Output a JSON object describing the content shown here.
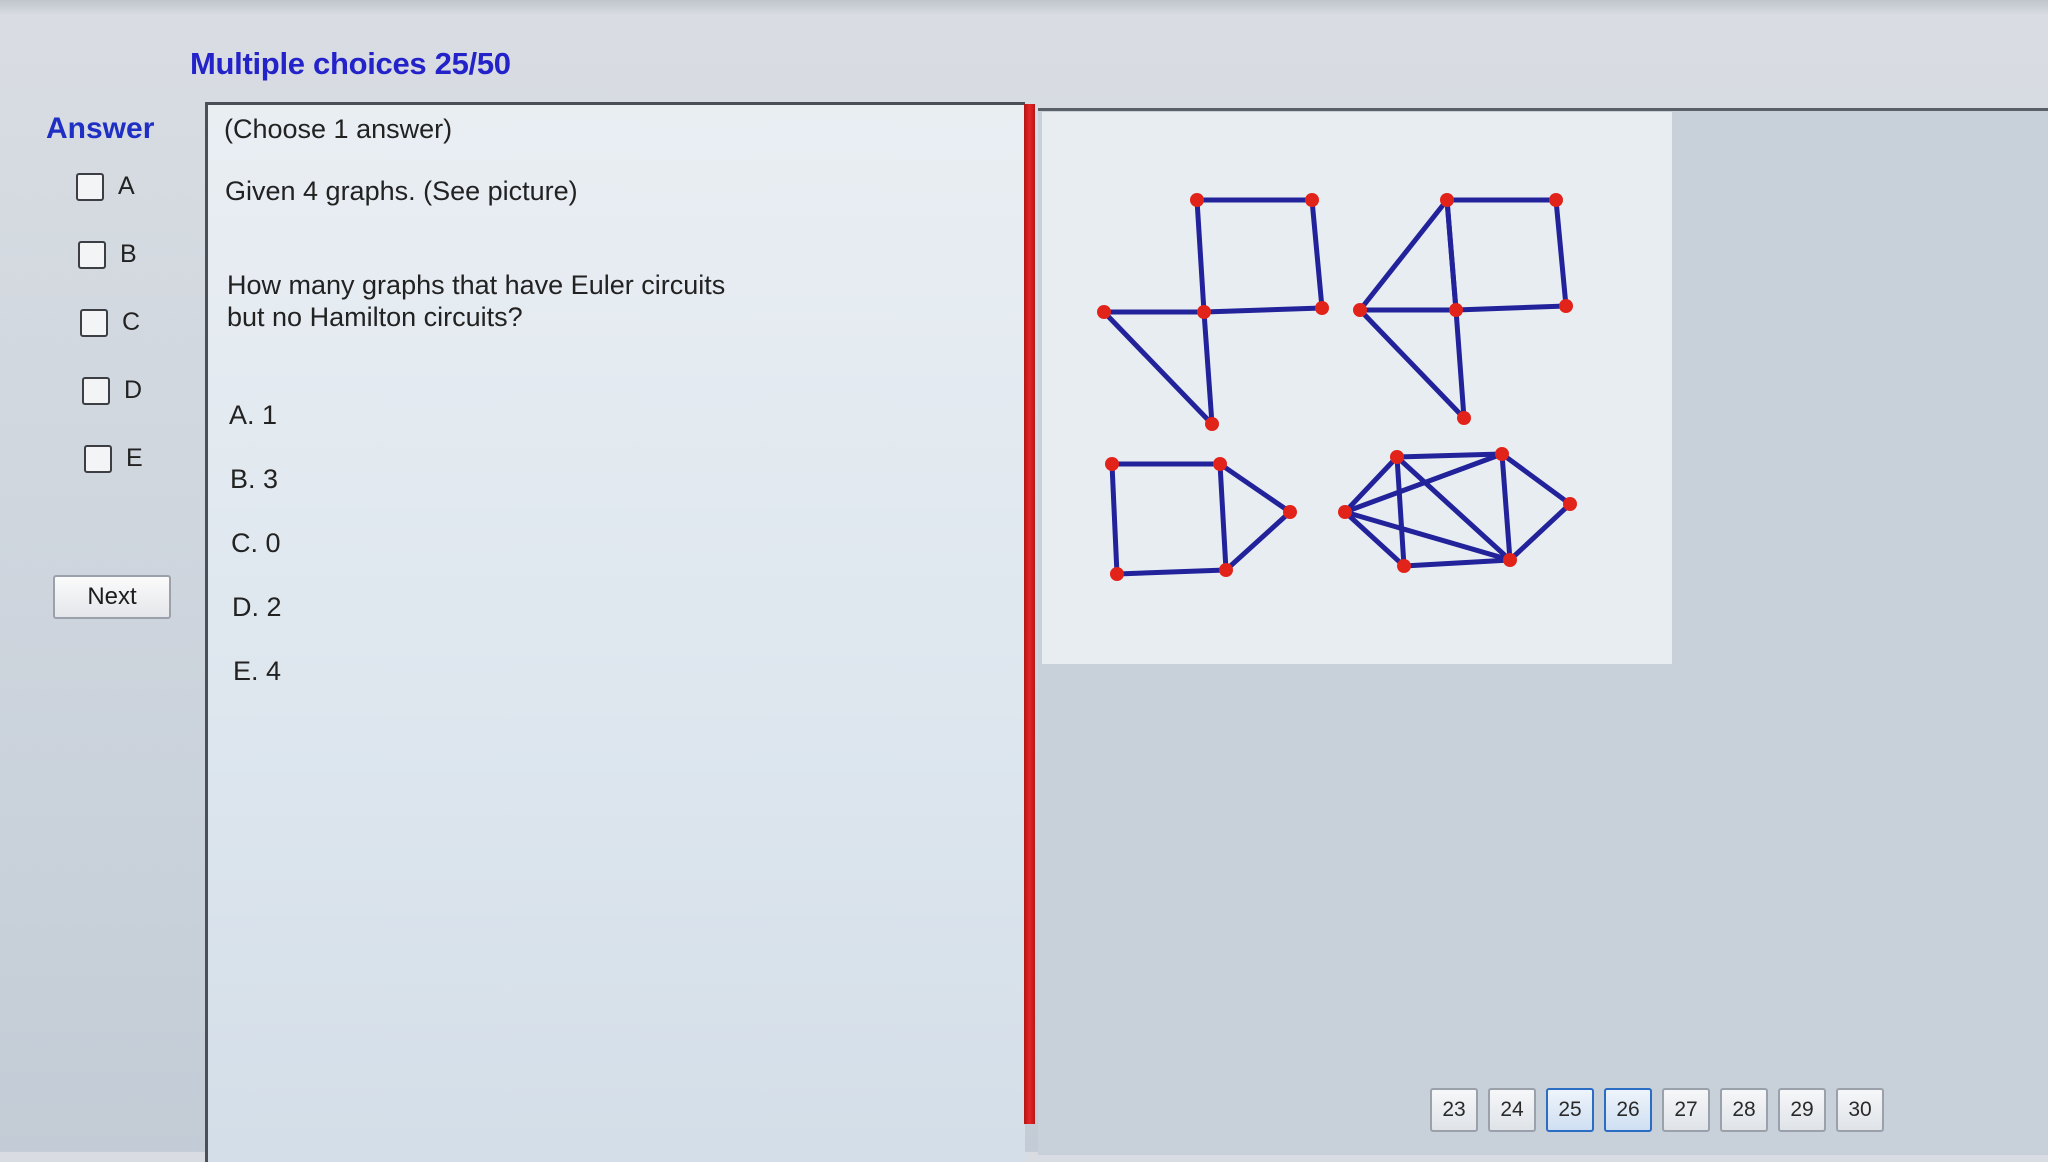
{
  "header": {
    "title": "Multiple choices 25/50"
  },
  "answer": {
    "label": "Answer",
    "options": [
      "A",
      "B",
      "C",
      "D",
      "E"
    ],
    "next_label": "Next"
  },
  "question": {
    "instruction": "(Choose 1 answer)",
    "intro": "Given 4 graphs. (See picture)",
    "line1": "How many graphs that have Euler circuits",
    "line2": "but no Hamilton circuits?",
    "choices": [
      "A. 1",
      "B. 3",
      "C. 0",
      "D. 2",
      "E. 4"
    ]
  },
  "figure": {
    "edge_color": "#22229a",
    "vertex_color": "#e2231a"
  },
  "pagination": {
    "pages": [
      "23",
      "24",
      "25",
      "26",
      "27",
      "28",
      "29",
      "30"
    ],
    "current": "25"
  }
}
